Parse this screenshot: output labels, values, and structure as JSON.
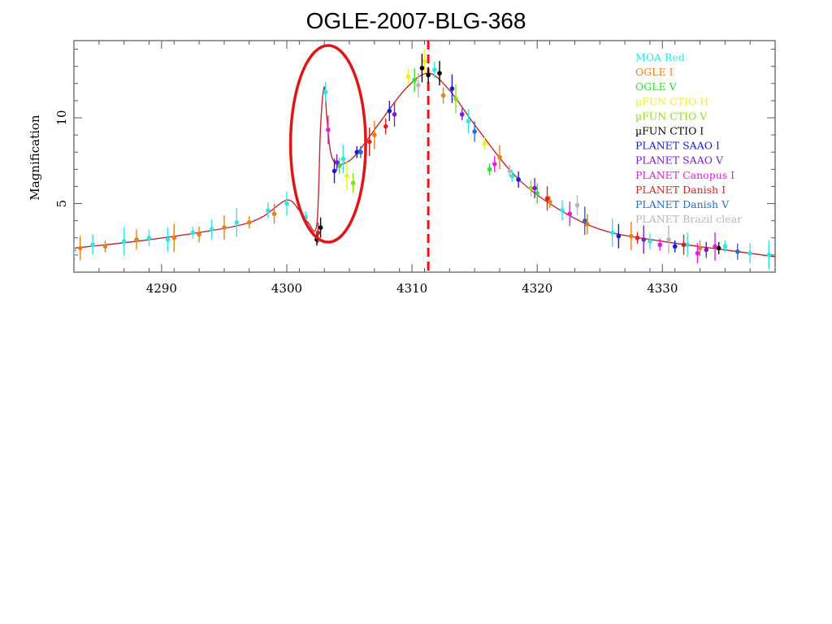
{
  "slide": {
    "title": "OGLE-2007-BLG-368"
  },
  "chart_data": {
    "type": "scatter",
    "title": "OGLE-2007-BLG-368",
    "xlabel": "",
    "ylabel": "Magnification",
    "xlim": [
      4283,
      4339
    ],
    "ylim": [
      1,
      14.5
    ],
    "xticks": [
      4290,
      4300,
      4310,
      4320,
      4330
    ],
    "yticks": [
      5,
      10
    ],
    "peak_marker_x": 4311.3,
    "anomaly_window": [
      4300.3,
      4306.3
    ],
    "model_curve": {
      "name": "model",
      "color": "#c62828",
      "x": [
        4283,
        4288,
        4292,
        4296,
        4298,
        4300,
        4301,
        4301.7,
        4302.4,
        4302.7,
        4303.0,
        4303.2,
        4303.5,
        4304.0,
        4305.0,
        4306.0,
        4307.5,
        4309.5,
        4311.3,
        4313,
        4315,
        4318,
        4321,
        4325,
        4330,
        4335,
        4339
      ],
      "y": [
        2.4,
        2.8,
        3.2,
        3.7,
        4.2,
        5.2,
        4.6,
        3.9,
        3.8,
        9.5,
        11.8,
        10.0,
        8.0,
        7.3,
        7.5,
        8.3,
        9.8,
        11.7,
        12.6,
        11.6,
        9.6,
        6.8,
        5.0,
        3.5,
        2.8,
        2.3,
        1.9
      ]
    },
    "series": [
      {
        "name": "MOA Red",
        "color": "#2fe6e6",
        "x": [
          4283,
          4284.5,
          4287,
          4289,
          4290.5,
          4292.5,
          4294,
          4296,
          4298.5,
          4300,
          4301.5,
          4303.1,
          4304.5,
          4311.8,
          4314.5,
          4318,
          4322,
          4326,
          4329,
          4332,
          4335,
          4337,
          4338.5
        ],
        "y": [
          2.3,
          2.6,
          2.8,
          3.0,
          2.9,
          3.3,
          3.5,
          3.9,
          4.6,
          5.0,
          4.2,
          11.5,
          7.6,
          12.8,
          9.8,
          6.6,
          4.6,
          3.3,
          2.8,
          2.6,
          2.5,
          2.1,
          2.0
        ]
      },
      {
        "name": "OGLE I",
        "color": "#e8801a",
        "x": [
          4283.5,
          4285.5,
          4288,
          4291,
          4293,
          4295,
          4297,
          4299,
          4307,
          4312.5,
          4317,
          4321,
          4324,
          4327.5,
          4333
        ],
        "y": [
          2.4,
          2.5,
          2.9,
          3.0,
          3.2,
          3.6,
          3.9,
          4.4,
          9.0,
          11.3,
          7.7,
          5.1,
          3.8,
          3.1,
          2.4
        ]
      },
      {
        "name": "OGLE V",
        "color": "#33e033",
        "x": [
          4304.2,
          4310.2,
          4316.2,
          4320
        ],
        "y": [
          7.2,
          12.2,
          7.0,
          5.6
        ]
      },
      {
        "name": "µFUN CTIO H",
        "color": "#f0f020",
        "x": [
          4304.8,
          4309.7,
          4311,
          4315.8
        ],
        "y": [
          6.6,
          12.4,
          13.3,
          8.5
        ]
      },
      {
        "name": "µFUN CTIO V",
        "color": "#8ce010",
        "x": [
          4305.3,
          4313.5,
          4319.5
        ],
        "y": [
          6.2,
          11.1,
          5.9
        ]
      },
      {
        "name": "µFUN CTIO I",
        "color": "#000000",
        "x": [
          4302.4,
          4302.7,
          4310.8,
          4311.3,
          4312.2,
          4334.5
        ],
        "y": [
          2.9,
          3.6,
          12.9,
          12.5,
          12.6,
          2.4
        ]
      },
      {
        "name": "PLANET SAAO I",
        "color": "#1a1ad6",
        "x": [
          4303.8,
          4305.6,
          4308.2,
          4313.2,
          4318.5,
          4326.5,
          4331
        ],
        "y": [
          6.9,
          8.0,
          10.4,
          11.7,
          6.4,
          3.1,
          2.5
        ]
      },
      {
        "name": "PLANET SAAO V",
        "color": "#7d1ad6",
        "x": [
          4304,
          4308.6,
          4314,
          4319.8,
          4328.5,
          4333.5
        ],
        "y": [
          7.4,
          10.2,
          10.2,
          5.9,
          2.9,
          2.3
        ]
      },
      {
        "name": "PLANET Canopus I",
        "color": "#e81ae8",
        "x": [
          4303.3,
          4316.6,
          4322.6,
          4329.8,
          4332.8,
          4334.2
        ],
        "y": [
          9.3,
          7.3,
          4.4,
          2.6,
          2.1,
          2.5
        ]
      },
      {
        "name": "PLANET Danish I",
        "color": "#e02020",
        "x": [
          4302.5,
          4306.6,
          4307.9,
          4320.8,
          4328,
          4331.7
        ],
        "y": [
          3.3,
          8.6,
          9.5,
          5.3,
          3.0,
          2.6
        ]
      },
      {
        "name": "PLANET Danish V",
        "color": "#1a72d6",
        "x": [
          4305.9,
          4315,
          4323.8,
          4336
        ],
        "y": [
          8.0,
          9.2,
          4.0,
          2.2
        ]
      },
      {
        "name": "PLANET Brazil clear",
        "color": "#b8b8b8",
        "x": [
          4310.5,
          4317.8,
          4323.2,
          4330.5
        ],
        "y": [
          11.9,
          6.9,
          4.9,
          2.9
        ]
      }
    ]
  }
}
